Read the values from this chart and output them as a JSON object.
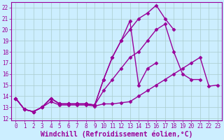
{
  "background_color": "#cceeff",
  "grid_color": "#aacccc",
  "line_color": "#990099",
  "marker": "D",
  "markersize": 2.5,
  "linewidth": 1.0,
  "xlabel": "Windchill (Refroidissement éolien,°C)",
  "xlabel_fontsize": 7,
  "xlim": [
    -0.5,
    23.5
  ],
  "ylim": [
    11.8,
    22.5
  ],
  "yticks": [
    12,
    13,
    14,
    15,
    16,
    17,
    18,
    19,
    20,
    21,
    22
  ],
  "xticks": [
    0,
    1,
    2,
    3,
    4,
    5,
    6,
    7,
    8,
    9,
    10,
    11,
    12,
    13,
    14,
    15,
    16,
    17,
    18,
    19,
    20,
    21,
    22,
    23
  ],
  "series": [
    {
      "x": [
        0,
        1,
        2,
        3,
        4,
        5,
        6,
        7,
        8,
        9,
        10,
        11,
        12,
        13,
        14,
        15,
        16,
        17,
        18,
        19,
        20,
        21,
        22,
        23
      ],
      "y": [
        13.8,
        12.8,
        12.6,
        13.0,
        13.5,
        13.2,
        13.2,
        13.2,
        13.2,
        13.1,
        13.3,
        13.3,
        13.4,
        13.5,
        14.0,
        14.5,
        15.0,
        15.5,
        16.0,
        16.5,
        17.0,
        17.5,
        14.9,
        15.0
      ]
    },
    {
      "x": [
        0,
        1,
        2,
        3,
        4,
        5,
        6,
        7,
        8,
        9,
        10,
        11,
        12,
        13,
        14,
        15,
        16,
        17,
        18,
        19,
        20,
        21,
        22,
        23
      ],
      "y": [
        13.8,
        12.8,
        12.6,
        13.0,
        13.8,
        13.3,
        13.3,
        13.3,
        13.3,
        13.2,
        14.5,
        15.5,
        16.5,
        17.5,
        18.0,
        19.0,
        20.0,
        20.5,
        18.0,
        16.0,
        15.5,
        15.5,
        null,
        null
      ]
    },
    {
      "x": [
        0,
        1,
        2,
        3,
        4,
        5,
        6,
        7,
        8,
        9,
        10,
        11,
        12,
        13,
        14,
        15,
        16,
        17,
        18,
        19,
        20
      ],
      "y": [
        13.8,
        12.8,
        12.6,
        13.0,
        13.8,
        13.3,
        13.3,
        13.3,
        13.3,
        13.2,
        15.5,
        17.5,
        19.0,
        20.0,
        21.0,
        21.5,
        22.2,
        21.0,
        20.0,
        null,
        null
      ]
    },
    {
      "x": [
        0,
        1,
        2,
        3,
        4,
        5,
        6,
        7,
        8,
        9,
        10,
        11,
        12,
        13,
        14,
        15,
        16,
        17,
        18
      ],
      "y": [
        13.8,
        12.8,
        12.6,
        13.0,
        13.8,
        13.3,
        13.3,
        13.3,
        13.3,
        13.2,
        15.5,
        17.5,
        19.0,
        20.8,
        15.0,
        16.5,
        17.0,
        null,
        null
      ]
    }
  ]
}
